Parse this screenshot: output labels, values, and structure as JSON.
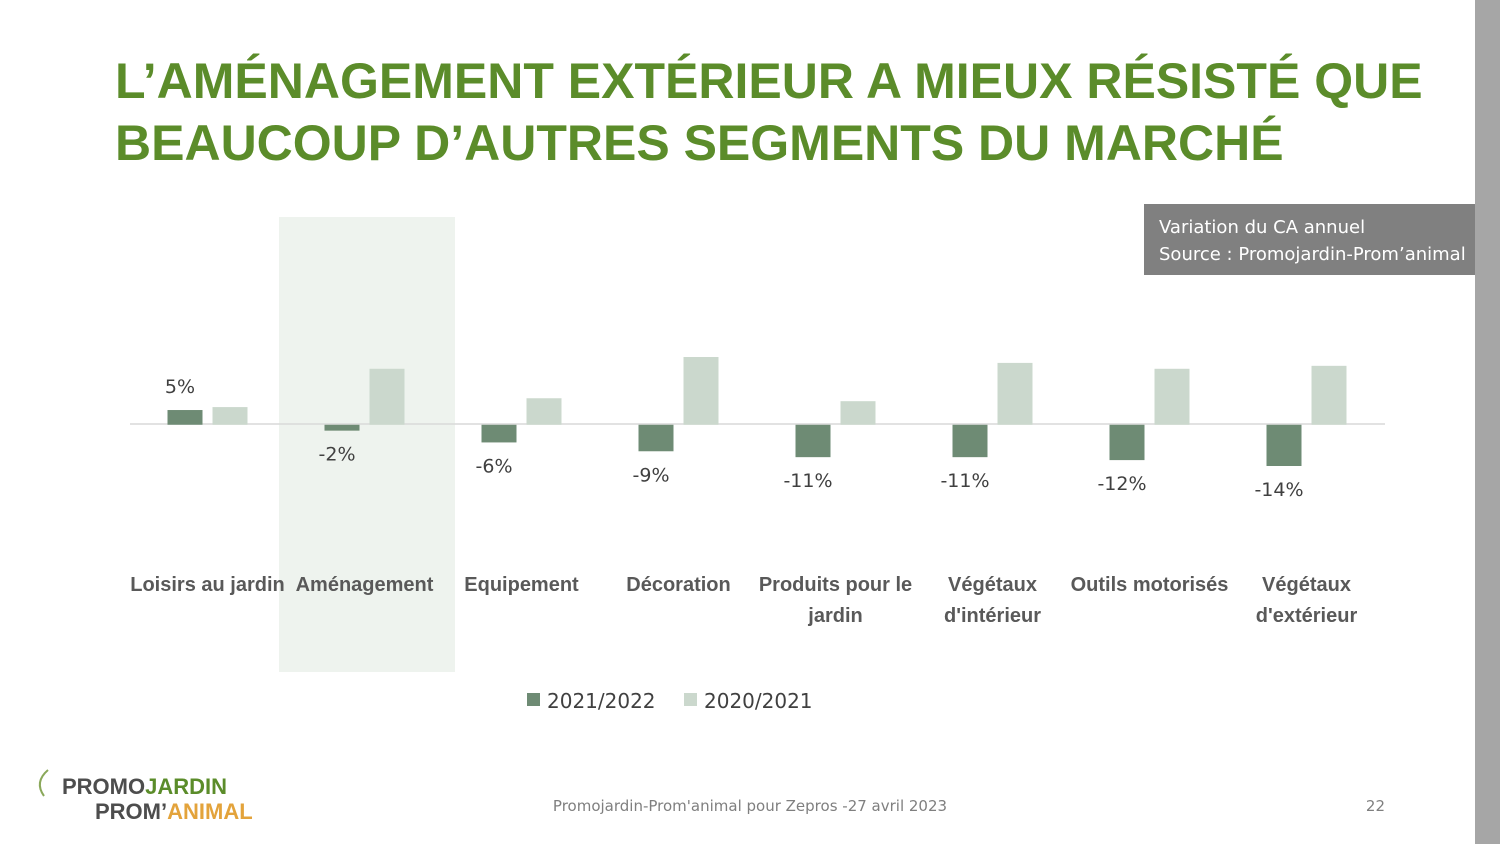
{
  "chart_data": {
    "type": "bar",
    "title": [
      "L’AMÉNAGEMENT EXTÉRIEUR A MIEUX RÉSISTÉ QUE",
      "BEAUCOUP D’AUTRES SEGMENTS DU MARCHÉ"
    ],
    "note": [
      "Variation du CA annuel",
      "Source : Promojardin-Prom’animal"
    ],
    "categories": [
      "Loisirs au jardin",
      "Aménagement",
      "Equipement",
      "Décoration",
      "Produits pour le jardin",
      "Végétaux d'intérieur",
      "Outils motorisés",
      "Végétaux d'extérieur"
    ],
    "series": [
      {
        "name": "2021/2022",
        "color": "#6e8b74",
        "values": [
          5,
          -2,
          -6,
          -9,
          -11,
          -11,
          -12,
          -14
        ],
        "value_labels": [
          "5%",
          "-2%",
          "-6%",
          "-9%",
          "-11%",
          "-11%",
          "-12%",
          "-14%"
        ]
      },
      {
        "name": "2020/2021",
        "color": "#cbd8cd",
        "values": [
          6,
          19,
          9,
          23,
          8,
          21,
          19,
          20
        ]
      }
    ]
  },
  "footer": {
    "text": "Promojardin-Prom'animal pour Zepros -27 avril 2023",
    "page": "22"
  },
  "logo": {
    "line1": [
      "PROMO",
      "JARDIN"
    ],
    "line2": [
      "PROM’",
      "ANIMAL"
    ]
  }
}
